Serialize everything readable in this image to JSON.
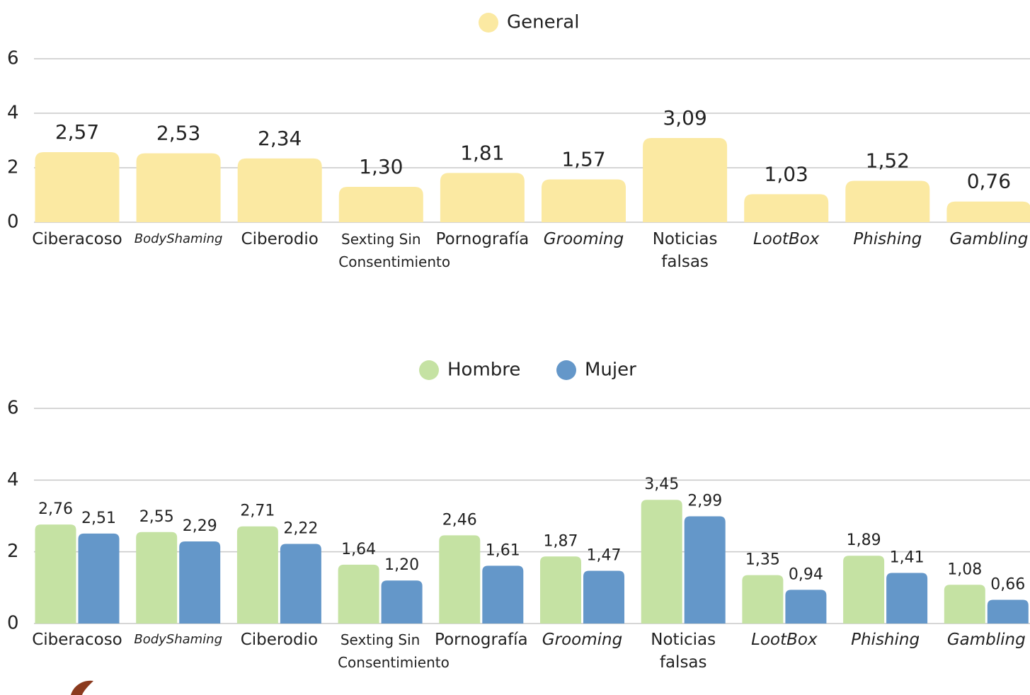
{
  "chart_data": [
    {
      "type": "bar",
      "categories": [
        "Ciberacoso",
        "BodyShaming",
        "Ciberodio",
        "Sexting Sin Consentimiento",
        "Pornografía",
        "Grooming",
        "Noticias falsas",
        "LootBox",
        "Phishing",
        "Gambling"
      ],
      "series": [
        {
          "name": "General",
          "color": "#fbe9a2",
          "values": [
            2.57,
            2.53,
            2.34,
            1.3,
            1.81,
            1.57,
            3.09,
            1.03,
            1.52,
            0.76
          ],
          "value_labels": [
            "2,57",
            "2,53",
            "2,34",
            "1,30",
            "1,81",
            "1,57",
            "3,09",
            "1,03",
            "1,52",
            "0,76"
          ]
        }
      ],
      "ylim": [
        0,
        6
      ],
      "yticks": [
        0,
        2,
        4,
        6
      ],
      "grid": true,
      "legend": "top"
    },
    {
      "type": "bar",
      "categories": [
        "Ciberacoso",
        "BodyShaming",
        "Ciberodio",
        "Sexting Sin Consentimiento",
        "Pornografía",
        "Grooming",
        "Noticias falsas",
        "LootBox",
        "Phishing",
        "Gambling"
      ],
      "series": [
        {
          "name": "Hombre",
          "color": "#c5e2a3",
          "values": [
            2.76,
            2.55,
            2.71,
            1.64,
            2.46,
            1.87,
            3.45,
            1.35,
            1.89,
            1.08
          ],
          "value_labels": [
            "2,76",
            "2,55",
            "2,71",
            "1,64",
            "2,46",
            "1,87",
            "3,45",
            "1,35",
            "1,89",
            "1,08"
          ]
        },
        {
          "name": "Mujer",
          "color": "#6497c9",
          "values": [
            2.51,
            2.29,
            2.22,
            1.2,
            1.61,
            1.47,
            2.99,
            0.94,
            1.41,
            0.66
          ],
          "value_labels": [
            "2,51",
            "2,29",
            "2,22",
            "1,20",
            "1,61",
            "1,47",
            "2,99",
            "0,94",
            "1,41",
            "0,66"
          ]
        }
      ],
      "ylim": [
        0,
        6
      ],
      "yticks": [
        0,
        2,
        4,
        6
      ],
      "grid": true,
      "legend": "top"
    }
  ]
}
